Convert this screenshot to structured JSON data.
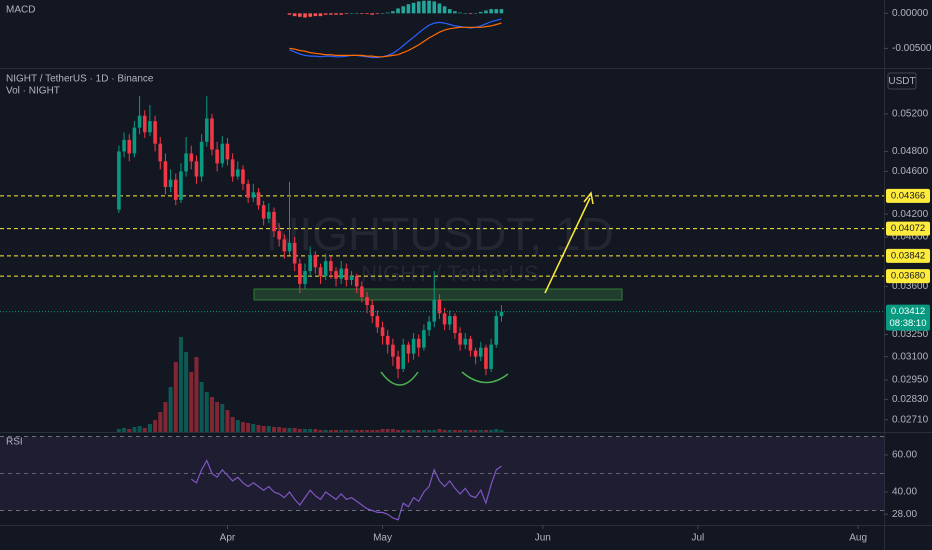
{
  "chart_data": {
    "type": "candlestick",
    "title": "NIGHT / TetherUS · 1D · Binance",
    "volume_label": "Vol · NIGHT",
    "currency": "USDT",
    "watermark": "NIGHTUSDT, 1D",
    "watermark_subtitle": "NIGHT / TetherUS",
    "colors": {
      "up": "#089981",
      "down": "#f23645"
    },
    "log_scale": true,
    "x": [
      -21,
      -20,
      -19,
      -18,
      -17,
      -16,
      -15,
      -14,
      -13,
      -12,
      -11,
      -10,
      -9,
      -8,
      -7,
      -6,
      -5,
      -4,
      -3,
      -2,
      -1,
      0,
      1,
      2,
      3,
      4,
      5,
      6,
      7,
      8,
      9,
      10,
      11,
      12,
      13,
      14,
      15,
      16,
      17,
      18,
      19,
      20,
      21,
      22,
      23,
      24,
      25,
      26,
      27,
      28,
      29,
      30,
      31,
      32,
      33,
      34,
      35,
      36,
      37,
      38,
      39,
      40,
      41,
      42,
      43,
      44,
      45,
      46,
      47,
      48,
      49,
      50,
      51,
      52,
      53
    ],
    "ohlc": [
      [
        0.0424,
        0.0486,
        0.0421,
        0.048
      ],
      [
        0.048,
        0.05,
        0.0474,
        0.0492
      ],
      [
        0.0492,
        0.0498,
        0.047,
        0.0478
      ],
      [
        0.0478,
        0.0512,
        0.0474,
        0.0505
      ],
      [
        0.0505,
        0.054,
        0.0498,
        0.0518
      ],
      [
        0.0518,
        0.0524,
        0.0494,
        0.05
      ],
      [
        0.05,
        0.053,
        0.0496,
        0.0512
      ],
      [
        0.0512,
        0.0518,
        0.048,
        0.0488
      ],
      [
        0.0488,
        0.0495,
        0.0462,
        0.047
      ],
      [
        0.047,
        0.0478,
        0.0438,
        0.0445
      ],
      [
        0.0445,
        0.0462,
        0.044,
        0.0452
      ],
      [
        0.0452,
        0.0458,
        0.0428,
        0.0433
      ],
      [
        0.0433,
        0.0468,
        0.043,
        0.046
      ],
      [
        0.046,
        0.0495,
        0.0455,
        0.0478
      ],
      [
        0.0478,
        0.0486,
        0.0462,
        0.047
      ],
      [
        0.047,
        0.0476,
        0.0448,
        0.0455
      ],
      [
        0.0455,
        0.0498,
        0.045,
        0.049
      ],
      [
        0.049,
        0.054,
        0.0485,
        0.0515
      ],
      [
        0.0515,
        0.052,
        0.0476,
        0.0482
      ],
      [
        0.0482,
        0.049,
        0.046,
        0.0468
      ],
      [
        0.0468,
        0.0496,
        0.0464,
        0.0488
      ],
      [
        0.0488,
        0.0494,
        0.0466,
        0.0472
      ],
      [
        0.0472,
        0.0478,
        0.045,
        0.0455
      ],
      [
        0.0455,
        0.047,
        0.0452,
        0.0462
      ],
      [
        0.0462,
        0.0466,
        0.0442,
        0.0448
      ],
      [
        0.0448,
        0.0452,
        0.043,
        0.0435
      ],
      [
        0.0435,
        0.0448,
        0.0431,
        0.044
      ],
      [
        0.044,
        0.0444,
        0.0424,
        0.0428
      ],
      [
        0.0428,
        0.0432,
        0.041,
        0.0416
      ],
      [
        0.0416,
        0.043,
        0.0412,
        0.0422
      ],
      [
        0.0422,
        0.0426,
        0.04,
        0.0405
      ],
      [
        0.0405,
        0.0412,
        0.0392,
        0.0398
      ],
      [
        0.0398,
        0.0402,
        0.0382,
        0.0388
      ],
      [
        0.0388,
        0.045,
        0.0385,
        0.0395
      ],
      [
        0.0395,
        0.04,
        0.0372,
        0.0378
      ],
      [
        0.0378,
        0.0382,
        0.0355,
        0.0362
      ],
      [
        0.0362,
        0.0378,
        0.0358,
        0.0372
      ],
      [
        0.0372,
        0.0392,
        0.0368,
        0.0385
      ],
      [
        0.0385,
        0.0388,
        0.037,
        0.0375
      ],
      [
        0.0375,
        0.0378,
        0.0362,
        0.0368
      ],
      [
        0.0368,
        0.0386,
        0.0365,
        0.038
      ],
      [
        0.038,
        0.0384,
        0.0366,
        0.0372
      ],
      [
        0.0372,
        0.0375,
        0.036,
        0.0366
      ],
      [
        0.0366,
        0.038,
        0.0362,
        0.0374
      ],
      [
        0.0374,
        0.0378,
        0.036,
        0.0365
      ],
      [
        0.0365,
        0.0372,
        0.0361,
        0.0368
      ],
      [
        0.0368,
        0.037,
        0.0355,
        0.036
      ],
      [
        0.036,
        0.0364,
        0.0348,
        0.0352
      ],
      [
        0.0352,
        0.0356,
        0.034,
        0.0346
      ],
      [
        0.0346,
        0.035,
        0.0333,
        0.0338
      ],
      [
        0.0338,
        0.0342,
        0.0326,
        0.033
      ],
      [
        0.033,
        0.0334,
        0.0318,
        0.0324
      ],
      [
        0.0324,
        0.0328,
        0.0312,
        0.0318
      ],
      [
        0.0318,
        0.0322,
        0.0304,
        0.031
      ],
      [
        0.031,
        0.0314,
        0.0296,
        0.0302
      ],
      [
        0.0302,
        0.0322,
        0.03,
        0.0318
      ],
      [
        0.0318,
        0.032,
        0.0306,
        0.0312
      ],
      [
        0.0312,
        0.0326,
        0.0308,
        0.0322
      ],
      [
        0.0322,
        0.0325,
        0.031,
        0.0316
      ],
      [
        0.0316,
        0.0332,
        0.0314,
        0.0328
      ],
      [
        0.0328,
        0.0338,
        0.0324,
        0.0334
      ],
      [
        0.0334,
        0.0372,
        0.033,
        0.035
      ],
      [
        0.035,
        0.0354,
        0.0336,
        0.034
      ],
      [
        0.034,
        0.0344,
        0.0328,
        0.0332
      ],
      [
        0.0332,
        0.0342,
        0.0328,
        0.0338
      ],
      [
        0.0338,
        0.034,
        0.0322,
        0.0326
      ],
      [
        0.0326,
        0.033,
        0.0314,
        0.0318
      ],
      [
        0.0318,
        0.0326,
        0.0315,
        0.0322
      ],
      [
        0.0322,
        0.0324,
        0.031,
        0.0314
      ],
      [
        0.0314,
        0.0316,
        0.0305,
        0.031
      ],
      [
        0.031,
        0.032,
        0.0307,
        0.0316
      ],
      [
        0.0316,
        0.0318,
        0.0298,
        0.0302
      ],
      [
        0.0302,
        0.0322,
        0.03,
        0.0318
      ],
      [
        0.0318,
        0.0342,
        0.0316,
        0.0338
      ],
      [
        0.0338,
        0.0346,
        0.0334,
        0.03412
      ]
    ],
    "volume": [
      3,
      4,
      3,
      5,
      6,
      4,
      8,
      12,
      20,
      30,
      45,
      70,
      95,
      80,
      60,
      75,
      50,
      40,
      35,
      30,
      28,
      22,
      15,
      12,
      10,
      9,
      8,
      7,
      6,
      6,
      5,
      5,
      4,
      4,
      4,
      3,
      3,
      3,
      3,
      2,
      2,
      2,
      2,
      2,
      2,
      2,
      2,
      2,
      2,
      2,
      2,
      3,
      3,
      3,
      2,
      2,
      2,
      2,
      2,
      2,
      2,
      2,
      3,
      2,
      2,
      2,
      2,
      2,
      2,
      2,
      2,
      2,
      2,
      3,
      2
    ],
    "xlim": [
      -44,
      127
    ],
    "xticks": [
      {
        "value": 0,
        "label": "Apr"
      },
      {
        "value": 30,
        "label": "May"
      },
      {
        "value": 61,
        "label": "Jun"
      },
      {
        "value": 91,
        "label": "Jul"
      },
      {
        "value": 122,
        "label": "Aug"
      }
    ],
    "ylim": [
      0.0264,
      0.0571
    ],
    "yticks": [
      {
        "value": 0.052,
        "label": "0.05200"
      },
      {
        "value": 0.048,
        "label": "0.04800"
      },
      {
        "value": 0.046,
        "label": "0.04600"
      },
      {
        "value": 0.042,
        "label": "0.04200"
      },
      {
        "value": 0.04,
        "label": "0.04000"
      },
      {
        "value": 0.036,
        "label": "0.03600"
      },
      {
        "value": 0.0325,
        "label": "0.03250"
      },
      {
        "value": 0.031,
        "label": "0.03100"
      },
      {
        "value": 0.0295,
        "label": "0.02950"
      },
      {
        "value": 0.0283,
        "label": "0.02830"
      },
      {
        "value": 0.0271,
        "label": "0.02710"
      }
    ],
    "levels": [
      0.04366,
      0.04072,
      0.03842,
      {
        "value": 0.0368,
        "label": "0.03680"
      }
    ],
    "level_color": "#ffeb3b",
    "last_price": 0.03412,
    "countdown": "08:38:10",
    "macd": {
      "title": "MACD",
      "ylim": [
        -0.0078,
        0.0019
      ],
      "yticks": [
        {
          "value": 0,
          "label": "0.00000"
        },
        {
          "value": -0.005,
          "label": "-0.00500"
        }
      ],
      "macd": {
        "color": "#2962ff",
        "values": [
          null,
          null,
          null,
          null,
          null,
          null,
          null,
          null,
          null,
          null,
          null,
          null,
          null,
          null,
          null,
          null,
          null,
          null,
          null,
          null,
          null,
          null,
          null,
          null,
          null,
          null,
          null,
          null,
          null,
          null,
          null,
          null,
          null,
          -0.0052,
          -0.0055,
          -0.0058,
          -0.006,
          -0.0061,
          -0.0061,
          -0.0062,
          -0.0061,
          -0.0061,
          -0.0062,
          -0.0062,
          -0.0061,
          -0.006,
          -0.006,
          -0.0061,
          -0.0062,
          -0.0063,
          -0.0063,
          -0.0062,
          -0.006,
          -0.0057,
          -0.0052,
          -0.0046,
          -0.004,
          -0.0034,
          -0.0028,
          -0.0022,
          -0.0017,
          -0.0014,
          -0.0013,
          -0.0014,
          -0.0016,
          -0.0018,
          -0.0019,
          -0.002,
          -0.0021,
          -0.002,
          -0.0018,
          -0.0015,
          -0.0012,
          -0.001,
          -0.0008
        ]
      },
      "signal": {
        "color": "#ff6d00",
        "values": [
          null,
          null,
          null,
          null,
          null,
          null,
          null,
          null,
          null,
          null,
          null,
          null,
          null,
          null,
          null,
          null,
          null,
          null,
          null,
          null,
          null,
          null,
          null,
          null,
          null,
          null,
          null,
          null,
          null,
          null,
          null,
          null,
          null,
          -0.005,
          -0.0051,
          -0.0053,
          -0.0054,
          -0.0056,
          -0.0057,
          -0.0058,
          -0.0059,
          -0.0059,
          -0.006,
          -0.006,
          -0.006,
          -0.006,
          -0.006,
          -0.006,
          -0.0061,
          -0.0061,
          -0.0062,
          -0.0062,
          -0.0061,
          -0.006,
          -0.0059,
          -0.0056,
          -0.0053,
          -0.0049,
          -0.0045,
          -0.004,
          -0.0035,
          -0.0031,
          -0.0027,
          -0.0024,
          -0.0022,
          -0.0021,
          -0.002,
          -0.002,
          -0.002,
          -0.002,
          -0.002,
          -0.0019,
          -0.0018,
          -0.0016,
          -0.0014
        ]
      },
      "histogram": {
        "up_color": "#26a69a",
        "down_color": "#ff5252",
        "values": [
          null,
          null,
          null,
          null,
          null,
          null,
          null,
          null,
          null,
          null,
          null,
          null,
          null,
          null,
          null,
          null,
          null,
          null,
          null,
          null,
          null,
          null,
          null,
          null,
          null,
          null,
          null,
          null,
          null,
          null,
          null,
          null,
          null,
          -0.0002,
          -0.0004,
          -0.0005,
          -0.0006,
          -0.0005,
          -0.0004,
          -0.0004,
          -0.0002,
          -0.0002,
          -0.0002,
          -0.0002,
          -0.0001,
          0,
          0,
          -0.0001,
          -0.0001,
          -0.0002,
          -0.0001,
          0,
          0.0001,
          0.0003,
          0.0007,
          0.001,
          0.0013,
          0.0015,
          0.0017,
          0.0018,
          0.0018,
          0.0017,
          0.0014,
          0.001,
          0.0006,
          0.0003,
          0.0001,
          0,
          -0.0001,
          0,
          0.0002,
          0.0004,
          0.0006,
          0.0006,
          0.0006
        ]
      }
    },
    "rsi": {
      "title": "RSI",
      "color": "#7e57c2",
      "ylim": [
        22.2,
        72.4
      ],
      "yticks": [
        {
          "value": 60,
          "label": "60.00"
        },
        {
          "value": 40,
          "label": "40.00"
        },
        {
          "value": 28,
          "label": "28.00"
        }
      ],
      "bands": [
        30,
        50,
        70
      ],
      "values": [
        null,
        null,
        null,
        null,
        null,
        null,
        null,
        null,
        null,
        null,
        null,
        null,
        null,
        null,
        47,
        45,
        52,
        57,
        50,
        48,
        52,
        49,
        46,
        48,
        45,
        43,
        45,
        43,
        41,
        43,
        40,
        39,
        37,
        40,
        36,
        33,
        37,
        41,
        38,
        36,
        40,
        38,
        36,
        39,
        36,
        37,
        35,
        33,
        31,
        30,
        29,
        29,
        28,
        26,
        25,
        34,
        32,
        37,
        35,
        40,
        43,
        52,
        46,
        43,
        46,
        42,
        39,
        42,
        38,
        37,
        41,
        34,
        44,
        52,
        54
      ]
    }
  }
}
